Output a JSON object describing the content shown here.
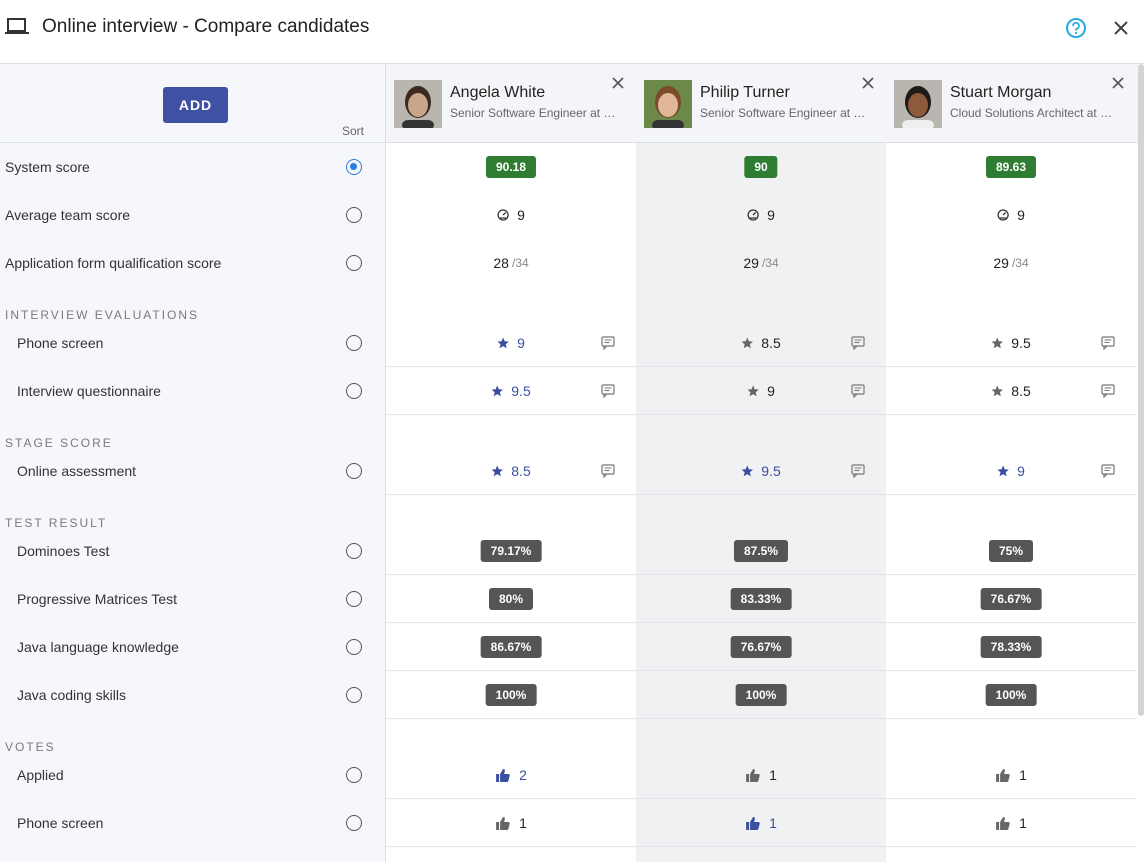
{
  "header": {
    "title": "Online interview - Compare candidates"
  },
  "toolbar": {
    "add_button": "ADD",
    "sort_label": "Sort"
  },
  "candidates": [
    {
      "name": "Angela White",
      "subtitle": "Senior Software Engineer at …"
    },
    {
      "name": "Philip Turner",
      "subtitle": "Senior Software Engineer at …"
    },
    {
      "name": "Stuart Morgan",
      "subtitle": "Cloud Solutions Architect at …"
    }
  ],
  "summary_rows": [
    {
      "label": "System score",
      "type": "badge",
      "selected": true,
      "cells": [
        {
          "value": "90.18"
        },
        {
          "value": "90"
        },
        {
          "value": "89.63"
        }
      ]
    },
    {
      "label": "Average team score",
      "type": "team",
      "cells": [
        {
          "value": "9"
        },
        {
          "value": "9"
        },
        {
          "value": "9"
        }
      ]
    },
    {
      "label": "Application form qualification score",
      "type": "fraction",
      "cells": [
        {
          "value": "28",
          "max": "/34"
        },
        {
          "value": "29",
          "max": "/34"
        },
        {
          "value": "29",
          "max": "/34"
        }
      ]
    }
  ],
  "sections": [
    {
      "title": "INTERVIEW EVALUATIONS",
      "rows": [
        {
          "label": "Phone screen",
          "type": "star",
          "cells": [
            {
              "value": "9",
              "highlight": true
            },
            {
              "value": "8.5",
              "highlight": false
            },
            {
              "value": "9.5",
              "highlight": false
            }
          ]
        },
        {
          "label": "Interview questionnaire",
          "type": "star",
          "cells": [
            {
              "value": "9.5",
              "highlight": true
            },
            {
              "value": "9",
              "highlight": false
            },
            {
              "value": "8.5",
              "highlight": false
            }
          ]
        }
      ]
    },
    {
      "title": "STAGE SCORE",
      "rows": [
        {
          "label": "Online assessment",
          "type": "star",
          "cells": [
            {
              "value": "8.5",
              "highlight": true
            },
            {
              "value": "9.5",
              "highlight": true
            },
            {
              "value": "9",
              "highlight": true
            }
          ]
        }
      ]
    },
    {
      "title": "TEST RESULT",
      "rows": [
        {
          "label": "Dominoes Test",
          "type": "percent",
          "cells": [
            {
              "value": "79.17%"
            },
            {
              "value": "87.5%"
            },
            {
              "value": "75%"
            }
          ]
        },
        {
          "label": "Progressive Matrices Test",
          "type": "percent",
          "cells": [
            {
              "value": "80%"
            },
            {
              "value": "83.33%"
            },
            {
              "value": "76.67%"
            }
          ]
        },
        {
          "label": "Java language knowledge",
          "type": "percent",
          "cells": [
            {
              "value": "86.67%"
            },
            {
              "value": "76.67%"
            },
            {
              "value": "78.33%"
            }
          ]
        },
        {
          "label": "Java coding skills",
          "type": "percent",
          "cells": [
            {
              "value": "100%"
            },
            {
              "value": "100%"
            },
            {
              "value": "100%"
            }
          ]
        }
      ]
    },
    {
      "title": "VOTES",
      "rows": [
        {
          "label": "Applied",
          "type": "vote",
          "cells": [
            {
              "value": "2",
              "highlight": true
            },
            {
              "value": "1",
              "highlight": false
            },
            {
              "value": "1",
              "highlight": false
            }
          ]
        },
        {
          "label": "Phone screen",
          "type": "vote",
          "cells": [
            {
              "value": "1",
              "highlight": false
            },
            {
              "value": "1",
              "highlight": true
            },
            {
              "value": "1",
              "highlight": false
            }
          ]
        }
      ]
    }
  ]
}
